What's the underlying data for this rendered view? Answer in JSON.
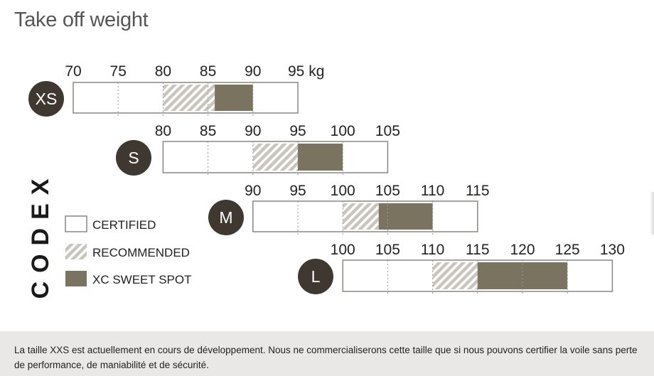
{
  "title": "Take off weight",
  "brand": "CODEX",
  "footnote": "La taille XXS est actuellement en cours de développement. Nous ne commercialiserons cette taille que si nous pouvons certifier la voile sans perte de performance, de maniabilité et de sécurité.",
  "legend": {
    "certified": "CERTIFIED",
    "recommended": "RECOMMENDED",
    "sweet_spot": "XC SWEET SPOT"
  },
  "colors": {
    "badge": "#3e3830",
    "sweet_spot": "#7a7360",
    "hatch": "#c9c5bc",
    "box_border": "#8a8780",
    "text": "#222222"
  },
  "chart_data": {
    "type": "bar",
    "unit": "kg",
    "xlabel": "",
    "ylabel": "",
    "sizes": [
      {
        "size": "XS",
        "ticks": [
          "70",
          "75",
          "80",
          "85",
          "90",
          "95 kg"
        ],
        "tick_values": [
          70,
          75,
          80,
          85,
          90,
          95
        ],
        "certified": [
          70,
          95
        ],
        "recommended": [
          80,
          85.75
        ],
        "sweet_spot": [
          85.75,
          90
        ]
      },
      {
        "size": "S",
        "ticks": [
          "80",
          "85",
          "90",
          "95",
          "100",
          "105"
        ],
        "tick_values": [
          80,
          85,
          90,
          95,
          100,
          105
        ],
        "certified": [
          80,
          105
        ],
        "recommended": [
          90,
          95
        ],
        "sweet_spot": [
          95,
          100
        ]
      },
      {
        "size": "M",
        "ticks": [
          "90",
          "95",
          "100",
          "105",
          "110",
          "115"
        ],
        "tick_values": [
          90,
          95,
          100,
          105,
          110,
          115
        ],
        "certified": [
          90,
          115
        ],
        "recommended": [
          100,
          104
        ],
        "sweet_spot": [
          104,
          110
        ]
      },
      {
        "size": "L",
        "ticks": [
          "100",
          "105",
          "110",
          "115",
          "120",
          "125",
          "130"
        ],
        "tick_values": [
          100,
          105,
          110,
          115,
          120,
          125,
          130
        ],
        "certified": [
          100,
          130
        ],
        "recommended": [
          110,
          115
        ],
        "sweet_spot": [
          115,
          125
        ]
      }
    ]
  }
}
